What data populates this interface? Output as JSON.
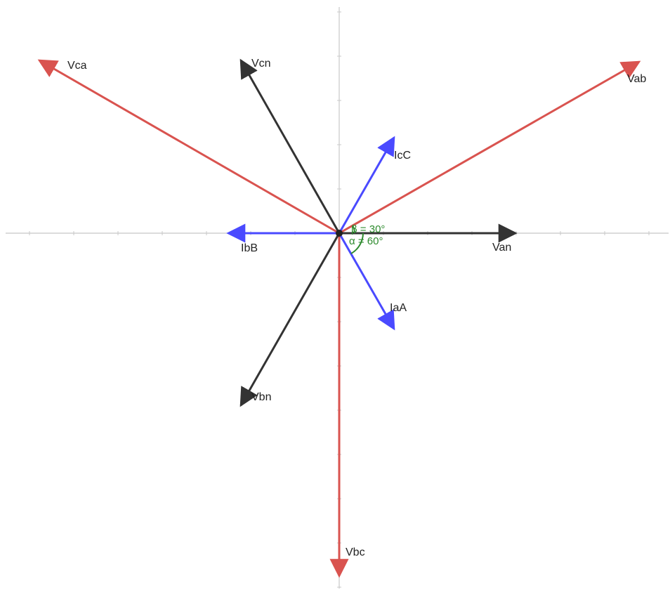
{
  "colors": {
    "line_voltage": "#d9534f",
    "phase_voltage": "#333333",
    "current": "#4a4aff",
    "angle": "#2e8b2e",
    "axis": "#c8c8c8",
    "origin": "#222222"
  },
  "vectors": [
    {
      "id": "vab",
      "label": "Vab",
      "group": "line_voltage"
    },
    {
      "id": "vbc",
      "label": "Vbc",
      "group": "line_voltage"
    },
    {
      "id": "vca",
      "label": "Vca",
      "group": "line_voltage"
    },
    {
      "id": "van",
      "label": "Van",
      "group": "phase_voltage"
    },
    {
      "id": "vbn",
      "label": "Vbn",
      "group": "phase_voltage"
    },
    {
      "id": "vcn",
      "label": "Vcn",
      "group": "phase_voltage"
    },
    {
      "id": "iaa",
      "label": "IaA",
      "group": "current"
    },
    {
      "id": "ibb",
      "label": "IbB",
      "group": "current"
    },
    {
      "id": "icc",
      "label": "IcC",
      "group": "current"
    }
  ],
  "angles": {
    "beta": "β = 30°",
    "alpha": "α = 60°"
  }
}
